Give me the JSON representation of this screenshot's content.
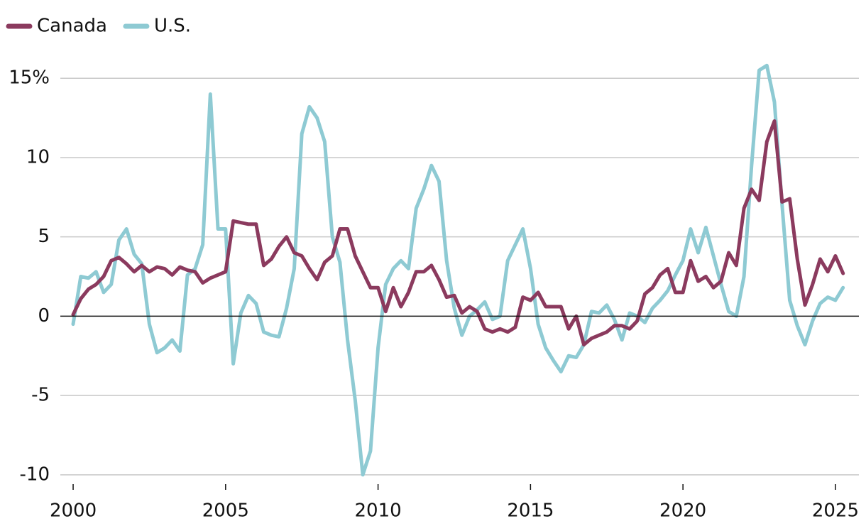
{
  "chart_data": {
    "type": "line",
    "x": [
      2000,
      2000.25,
      2000.5,
      2000.75,
      2001,
      2001.25,
      2001.5,
      2001.75,
      2002,
      2002.25,
      2002.5,
      2002.75,
      2003,
      2003.25,
      2003.5,
      2003.75,
      2004,
      2004.25,
      2004.5,
      2004.75,
      2005,
      2005.25,
      2005.5,
      2005.75,
      2006,
      2006.25,
      2006.5,
      2006.75,
      2007,
      2007.25,
      2007.5,
      2007.75,
      2008,
      2008.25,
      2008.5,
      2008.75,
      2009,
      2009.25,
      2009.5,
      2009.75,
      2010,
      2010.25,
      2010.5,
      2010.75,
      2011,
      2011.25,
      2011.5,
      2011.75,
      2012,
      2012.25,
      2012.5,
      2012.75,
      2013,
      2013.25,
      2013.5,
      2013.75,
      2014,
      2014.25,
      2014.5,
      2014.75,
      2015,
      2015.25,
      2015.5,
      2015.75,
      2016,
      2016.25,
      2016.5,
      2016.75,
      2017,
      2017.25,
      2017.5,
      2017.75,
      2018,
      2018.25,
      2018.5,
      2018.75,
      2019,
      2019.25,
      2019.5,
      2019.75,
      2020,
      2020.25,
      2020.5,
      2020.75,
      2021,
      2021.25,
      2021.5,
      2021.75,
      2022,
      2022.25,
      2022.5,
      2022.75,
      2023,
      2023.25,
      2023.5,
      2023.75,
      2024,
      2024.25,
      2024.5,
      2024.75,
      2025,
      2025.25
    ],
    "series": [
      {
        "name": "Canada",
        "color": "#8b3a5e",
        "values": [
          0.1,
          1.1,
          1.7,
          2.0,
          2.5,
          3.5,
          3.7,
          3.3,
          2.8,
          3.2,
          2.8,
          3.1,
          3.0,
          2.6,
          3.1,
          2.9,
          2.8,
          2.1,
          2.4,
          2.6,
          2.8,
          6.0,
          5.9,
          5.8,
          5.8,
          3.2,
          3.6,
          4.4,
          5.0,
          4.0,
          3.8,
          3.0,
          2.3,
          3.4,
          3.8,
          5.5,
          5.5,
          3.8,
          2.8,
          1.8,
          1.8,
          0.3,
          1.8,
          0.6,
          1.5,
          2.8,
          2.8,
          3.2,
          2.3,
          1.2,
          1.3,
          0.2,
          0.6,
          0.3,
          -0.8,
          -1.0,
          -0.8,
          -1.0,
          -0.7,
          1.2,
          1.0,
          1.5,
          0.6,
          0.6,
          0.6,
          -0.8,
          0.0,
          -1.8,
          -1.4,
          -1.2,
          -1.0,
          -0.6,
          -0.6,
          -0.8,
          -0.3,
          1.4,
          1.8,
          2.6,
          3.0,
          1.5,
          1.5,
          3.5,
          2.2,
          2.5,
          1.8,
          2.2,
          4.0,
          3.2,
          6.8,
          8.0,
          7.3,
          11.0,
          12.3,
          7.2,
          7.4,
          3.6,
          0.7,
          2.0,
          3.6,
          2.8,
          3.8,
          2.7
        ]
      },
      {
        "name": "U.S.",
        "color": "#8ecad3",
        "values": [
          -0.5,
          2.5,
          2.4,
          2.8,
          1.5,
          2.0,
          4.8,
          5.5,
          3.9,
          3.3,
          -0.5,
          -2.3,
          -2.0,
          -1.5,
          -2.2,
          2.6,
          3.0,
          4.5,
          14.0,
          5.5,
          5.5,
          -3.0,
          0.2,
          1.3,
          0.8,
          -1.0,
          -1.2,
          -1.3,
          0.5,
          3.0,
          11.5,
          13.2,
          12.5,
          11.0,
          5.0,
          3.4,
          -1.5,
          -5.3,
          -10.0,
          -8.5,
          -2.0,
          2.0,
          3.0,
          3.5,
          3.0,
          6.8,
          8.0,
          9.5,
          8.5,
          3.5,
          0.5,
          -1.2,
          0.0,
          0.4,
          0.9,
          -0.2,
          0.0,
          3.5,
          4.5,
          5.5,
          3.0,
          -0.5,
          -2.0,
          -2.8,
          -3.5,
          -2.5,
          -2.6,
          -1.8,
          0.3,
          0.2,
          0.7,
          -0.2,
          -1.5,
          0.2,
          0.0,
          -0.4,
          0.5,
          1.0,
          1.6,
          2.6,
          3.5,
          5.5,
          4.0,
          5.6,
          3.8,
          2.0,
          0.3,
          0.0,
          2.5,
          9.5,
          15.5,
          15.8,
          13.5,
          7.0,
          1.0,
          -0.6,
          -1.8,
          -0.3,
          0.8,
          1.2,
          1.0,
          1.8
        ]
      }
    ],
    "xlim": [
      1999.58,
      2025.77
    ],
    "xticks": [
      2000,
      2005,
      2010,
      2015,
      2020,
      2025
    ],
    "ylim": [
      -10.5,
      16.8
    ],
    "yticks": [
      -10,
      -5,
      0,
      5,
      {
        "value": 15,
        "label": "15%"
      },
      10
    ],
    "grid": true,
    "legend": "top-left"
  }
}
